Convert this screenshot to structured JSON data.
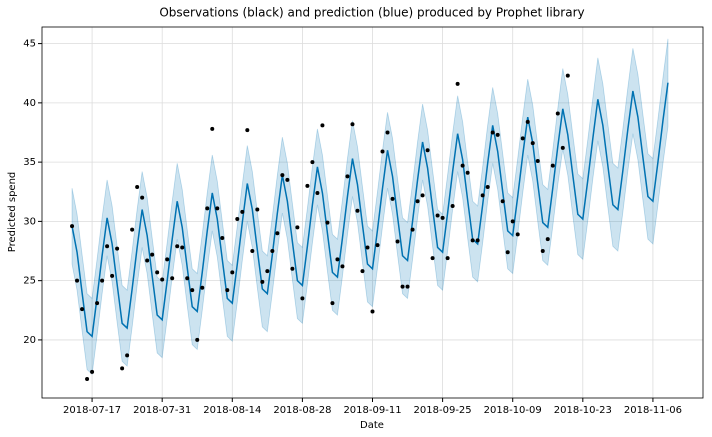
{
  "chart_data": {
    "type": "forecast",
    "title": "Observations (black) and prediction (blue) produced by Prophet library",
    "xlabel": "Date",
    "ylabel": "Predicted spend",
    "x": [
      "2018-07-13",
      "2018-07-14",
      "2018-07-15",
      "2018-07-16",
      "2018-07-17",
      "2018-07-18",
      "2018-07-19",
      "2018-07-20",
      "2018-07-21",
      "2018-07-22",
      "2018-07-23",
      "2018-07-24",
      "2018-07-25",
      "2018-07-26",
      "2018-07-27",
      "2018-07-28",
      "2018-07-29",
      "2018-07-30",
      "2018-07-31",
      "2018-08-01",
      "2018-08-02",
      "2018-08-03",
      "2018-08-04",
      "2018-08-05",
      "2018-08-06",
      "2018-08-07",
      "2018-08-08",
      "2018-08-09",
      "2018-08-10",
      "2018-08-11",
      "2018-08-12",
      "2018-08-13",
      "2018-08-14",
      "2018-08-15",
      "2018-08-16",
      "2018-08-17",
      "2018-08-18",
      "2018-08-19",
      "2018-08-20",
      "2018-08-21",
      "2018-08-22",
      "2018-08-23",
      "2018-08-24",
      "2018-08-25",
      "2018-08-26",
      "2018-08-27",
      "2018-08-28",
      "2018-08-29",
      "2018-08-30",
      "2018-08-31",
      "2018-09-01",
      "2018-09-02",
      "2018-09-03",
      "2018-09-04",
      "2018-09-05",
      "2018-09-06",
      "2018-09-07",
      "2018-09-08",
      "2018-09-09",
      "2018-09-10",
      "2018-09-11",
      "2018-09-12",
      "2018-09-13",
      "2018-09-14",
      "2018-09-15",
      "2018-09-16",
      "2018-09-17",
      "2018-09-18",
      "2018-09-19",
      "2018-09-20",
      "2018-09-21",
      "2018-09-22",
      "2018-09-23",
      "2018-09-24",
      "2018-09-25",
      "2018-09-26",
      "2018-09-27",
      "2018-09-28",
      "2018-09-29",
      "2018-09-30",
      "2018-10-01",
      "2018-10-02",
      "2018-10-03",
      "2018-10-04",
      "2018-10-05",
      "2018-10-06",
      "2018-10-07",
      "2018-10-08",
      "2018-10-09",
      "2018-10-10",
      "2018-10-11",
      "2018-10-12",
      "2018-10-13",
      "2018-10-14",
      "2018-10-15",
      "2018-10-16",
      "2018-10-17",
      "2018-10-18",
      "2018-10-19",
      "2018-10-20",
      "2018-10-21",
      "2018-10-22",
      "2018-10-23",
      "2018-10-24",
      "2018-10-25",
      "2018-10-26",
      "2018-10-27",
      "2018-10-28",
      "2018-10-29",
      "2018-10-30",
      "2018-10-31",
      "2018-11-01",
      "2018-11-02",
      "2018-11-03",
      "2018-11-04",
      "2018-11-05",
      "2018-11-06",
      "2018-11-07",
      "2018-11-08",
      "2018-11-09"
    ],
    "observed": [
      29.6,
      25.0,
      22.6,
      16.7,
      17.3,
      23.1,
      25.0,
      27.9,
      25.4,
      27.7,
      17.6,
      18.7,
      29.3,
      32.9,
      32.0,
      26.7,
      27.2,
      25.7,
      25.1,
      26.8,
      25.2,
      27.9,
      27.8,
      25.2,
      24.2,
      20.0,
      24.4,
      31.1,
      37.8,
      31.1,
      28.6,
      24.2,
      25.7,
      30.2,
      30.8,
      37.7,
      27.5,
      31.0,
      24.9,
      25.8,
      27.5,
      29.0,
      33.9,
      33.5,
      26.0,
      29.5,
      23.5,
      33.0,
      35.0,
      32.4,
      38.1,
      29.9,
      23.1,
      26.8,
      26.2,
      33.8,
      38.2,
      30.9,
      25.8,
      27.8,
      22.4,
      28.0,
      35.9,
      37.5,
      31.9,
      28.3,
      24.5,
      24.5,
      29.3,
      31.7,
      32.2,
      36.0,
      26.9,
      30.5,
      30.3,
      26.9,
      31.3,
      41.6,
      34.7,
      34.1,
      28.4,
      28.4,
      32.2,
      32.9,
      37.5,
      37.3,
      31.7,
      27.4,
      30.0,
      28.9,
      37.0,
      38.4,
      36.6,
      35.1,
      27.5,
      28.5,
      34.7,
      39.1,
      36.2,
      42.3,
      null,
      null,
      null,
      null,
      null,
      null,
      null,
      null,
      null,
      null,
      null,
      null,
      null,
      null,
      null,
      null,
      null,
      null,
      null,
      null
    ],
    "yhat": [
      29.6,
      27.4,
      24.0,
      20.7,
      20.3,
      23.6,
      27.1,
      30.3,
      28.1,
      24.7,
      21.4,
      21.0,
      24.3,
      27.8,
      31.0,
      28.8,
      25.4,
      22.1,
      21.7,
      25.0,
      28.5,
      31.7,
      29.5,
      26.1,
      22.8,
      22.4,
      25.7,
      29.2,
      32.4,
      30.2,
      26.8,
      23.5,
      23.1,
      26.4,
      29.9,
      33.2,
      31.0,
      27.6,
      24.3,
      23.9,
      27.2,
      30.7,
      33.9,
      31.7,
      28.3,
      25.0,
      24.6,
      27.9,
      31.4,
      34.6,
      32.4,
      29.0,
      25.7,
      25.3,
      28.6,
      32.1,
      35.3,
      33.1,
      29.7,
      26.4,
      26.0,
      29.3,
      32.8,
      36.0,
      33.8,
      30.4,
      27.1,
      26.7,
      30.0,
      33.5,
      36.7,
      34.5,
      31.1,
      27.8,
      27.4,
      30.7,
      34.2,
      37.4,
      35.2,
      31.8,
      28.5,
      28.1,
      31.4,
      34.9,
      38.1,
      35.9,
      32.5,
      29.2,
      28.8,
      32.1,
      35.6,
      38.8,
      36.6,
      33.2,
      29.9,
      29.5,
      32.8,
      36.3,
      39.5,
      37.3,
      33.9,
      30.6,
      30.2,
      33.5,
      37.0,
      40.3,
      38.1,
      34.7,
      31.4,
      31.0,
      34.3,
      37.8,
      41.0,
      38.8,
      35.4,
      32.1,
      31.7,
      35.0,
      38.5,
      41.7
    ],
    "yhat_lower": [
      26.4,
      24.2,
      20.8,
      17.5,
      17.1,
      20.4,
      23.9,
      27.1,
      24.9,
      21.5,
      18.2,
      17.8,
      21.1,
      24.6,
      27.8,
      25.6,
      22.2,
      18.9,
      18.5,
      21.8,
      25.3,
      28.5,
      26.3,
      22.9,
      19.6,
      19.2,
      22.5,
      26.0,
      29.2,
      27.0,
      23.6,
      20.3,
      19.9,
      23.2,
      26.7,
      30.0,
      27.8,
      24.4,
      21.1,
      20.7,
      24.0,
      27.5,
      30.7,
      28.5,
      25.1,
      21.8,
      21.4,
      24.7,
      28.2,
      31.4,
      29.2,
      25.8,
      22.5,
      22.1,
      25.4,
      28.9,
      32.1,
      29.9,
      26.5,
      23.2,
      22.8,
      26.1,
      29.6,
      32.8,
      30.6,
      27.2,
      23.9,
      23.5,
      26.8,
      30.3,
      33.5,
      31.3,
      27.9,
      24.6,
      24.2,
      27.5,
      31.0,
      34.2,
      32.0,
      28.6,
      25.3,
      24.9,
      28.2,
      31.7,
      34.9,
      32.7,
      29.3,
      26.0,
      25.6,
      28.9,
      32.4,
      35.6,
      33.4,
      30.0,
      26.7,
      26.3,
      29.6,
      33.1,
      36.1,
      33.9,
      30.5,
      27.2,
      26.8,
      30.1,
      33.6,
      36.8,
      34.6,
      31.2,
      27.9,
      27.5,
      30.8,
      34.3,
      37.4,
      35.2,
      31.8,
      28.5,
      28.1,
      31.4,
      34.9,
      38.0
    ],
    "yhat_upper": [
      32.8,
      30.6,
      27.2,
      23.9,
      23.5,
      26.8,
      30.3,
      33.5,
      31.3,
      27.9,
      24.6,
      24.2,
      27.5,
      31.0,
      34.2,
      32.0,
      28.6,
      25.3,
      24.9,
      28.2,
      31.7,
      34.9,
      32.7,
      29.3,
      26.0,
      25.6,
      28.9,
      32.4,
      35.6,
      33.4,
      30.0,
      26.7,
      26.3,
      29.6,
      33.1,
      36.4,
      34.2,
      30.8,
      27.5,
      27.1,
      30.4,
      33.9,
      37.1,
      34.9,
      31.5,
      28.2,
      27.8,
      31.1,
      34.6,
      37.8,
      35.6,
      32.2,
      28.9,
      28.5,
      31.8,
      35.3,
      38.5,
      36.3,
      32.9,
      29.6,
      29.2,
      32.5,
      36.0,
      39.2,
      37.0,
      33.6,
      30.3,
      29.9,
      33.2,
      36.7,
      39.9,
      37.7,
      34.3,
      31.0,
      30.6,
      33.9,
      37.4,
      40.6,
      38.4,
      35.0,
      31.7,
      31.3,
      34.6,
      38.1,
      41.3,
      39.1,
      35.7,
      32.4,
      32.0,
      35.3,
      38.8,
      42.0,
      39.8,
      36.4,
      33.1,
      32.7,
      36.0,
      39.5,
      42.9,
      40.7,
      37.3,
      34.0,
      33.6,
      36.9,
      40.4,
      43.8,
      41.6,
      38.2,
      34.9,
      34.5,
      37.8,
      41.3,
      44.6,
      42.4,
      39.0,
      35.7,
      35.3,
      38.6,
      42.1,
      45.4
    ],
    "observed_color": "#000000",
    "forecast_color": "#0072B2",
    "interval_color": "#0072B2",
    "xlim": [
      "2018-07-07",
      "2018-11-16"
    ],
    "xticks": [
      "2018-07-17",
      "2018-07-31",
      "2018-08-14",
      "2018-08-28",
      "2018-09-11",
      "2018-09-25",
      "2018-10-09",
      "2018-10-23",
      "2018-11-06"
    ],
    "ylim": [
      15.1,
      46.4
    ],
    "yticks": [
      20,
      25,
      30,
      35,
      40,
      45
    ],
    "grid": true
  }
}
